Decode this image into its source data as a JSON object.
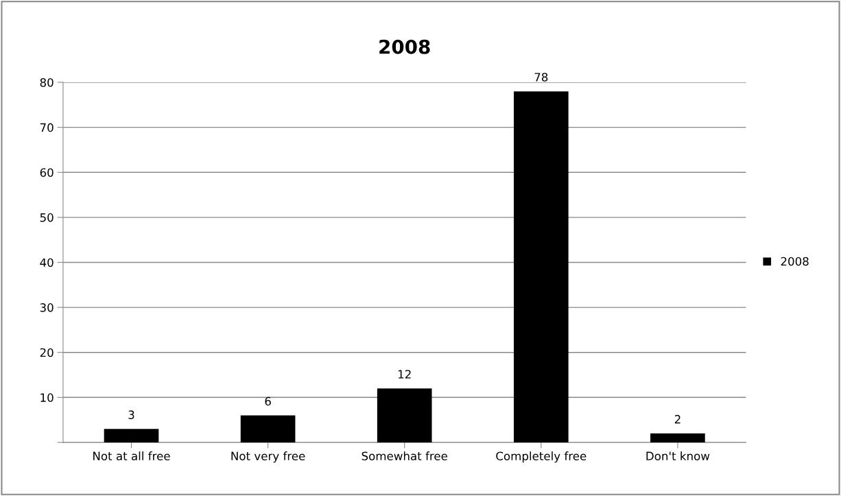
{
  "chart_data": {
    "type": "bar",
    "title": "2008",
    "categories": [
      "Not at all free",
      "Not very free",
      "Somewhat free",
      "Completely free",
      "Don't know"
    ],
    "series": [
      {
        "name": "2008",
        "color": "#000000",
        "values": [
          3,
          6,
          12,
          78,
          2
        ]
      }
    ],
    "ylim": [
      0,
      80
    ],
    "yticks": [
      {
        "value": 0,
        "label": null
      },
      10,
      20,
      30,
      40,
      50,
      60,
      70,
      80
    ],
    "grid": "y",
    "legend": "right",
    "data_labels": true
  }
}
